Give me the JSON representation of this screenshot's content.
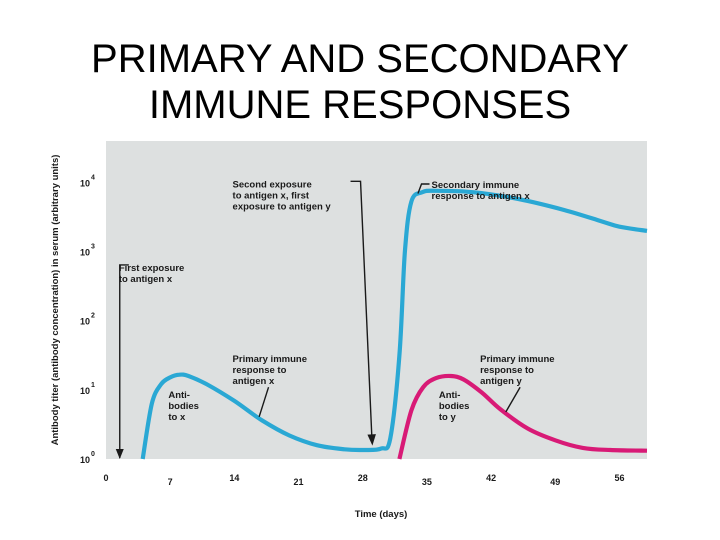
{
  "slide": {
    "title_line1": "PRIMARY AND SECONDARY",
    "title_line2": "IMMUNE RESPONSES"
  },
  "chart_data": {
    "type": "line",
    "title": "",
    "xlabel": "Time (days)",
    "ylabel": "Antibody titer (antibody concentration) in serum (arbitrary units)",
    "x_ticks": [
      0,
      7,
      14,
      21,
      28,
      35,
      42,
      49,
      56
    ],
    "y_ticks": [
      {
        "base": "10",
        "exp": "0",
        "value": 0
      },
      {
        "base": "10",
        "exp": "1",
        "value": 1
      },
      {
        "base": "10",
        "exp": "2",
        "value": 2
      },
      {
        "base": "10",
        "exp": "3",
        "value": 3
      },
      {
        "base": "10",
        "exp": "4",
        "value": 4
      }
    ],
    "xlim": [
      0,
      59
    ],
    "ylim": [
      0,
      4.6
    ],
    "y_scale": "log10",
    "grid": false,
    "background_color": "#dde0e0",
    "series": [
      {
        "color": "#2aa8d4",
        "points": [
          [
            4,
            0
          ],
          [
            5,
            0.8
          ],
          [
            6,
            1.08
          ],
          [
            7,
            1.18
          ],
          [
            8,
            1.22
          ],
          [
            9,
            1.2
          ],
          [
            11,
            1.08
          ],
          [
            14,
            0.84
          ],
          [
            17,
            0.56
          ],
          [
            20,
            0.34
          ],
          [
            23,
            0.2
          ],
          [
            26,
            0.14
          ],
          [
            28,
            0.13
          ],
          [
            30,
            0.15
          ],
          [
            31,
            0.3
          ],
          [
            32,
            1.5
          ],
          [
            32.6,
            3.0
          ],
          [
            33.3,
            3.72
          ],
          [
            34.5,
            3.86
          ],
          [
            36,
            3.88
          ],
          [
            40,
            3.86
          ],
          [
            45,
            3.76
          ],
          [
            50,
            3.6
          ],
          [
            54,
            3.44
          ],
          [
            56,
            3.36
          ],
          [
            59,
            3.3
          ]
        ]
      },
      {
        "color": "#d81a76",
        "points": [
          [
            32,
            0
          ],
          [
            33.3,
            0.7
          ],
          [
            34.6,
            1.04
          ],
          [
            36,
            1.17
          ],
          [
            37.6,
            1.2
          ],
          [
            39,
            1.15
          ],
          [
            41,
            0.96
          ],
          [
            43,
            0.72
          ],
          [
            46,
            0.44
          ],
          [
            49,
            0.27
          ],
          [
            52,
            0.16
          ],
          [
            55,
            0.13
          ],
          [
            59,
            0.12
          ]
        ]
      }
    ],
    "annotations": [
      {
        "lines": [
          "First exposure",
          "to antigen x"
        ],
        "x": 1.4,
        "y": 2.72,
        "target_x": 1.5,
        "target_y": 0
      },
      {
        "lines": [
          "Second exposure",
          "to antigen x, first",
          "exposure to antigen y"
        ],
        "x": 13.8,
        "y": 3.93,
        "target_x": 29,
        "target_y": 0.15
      },
      {
        "lines": [
          "Secondary immune",
          "response to antigen x"
        ],
        "x": 35.5,
        "y": 3.92,
        "target_x": 36.2,
        "target_y": 3.87
      },
      {
        "lines": [
          "Primary immune",
          "response to",
          "antigen x"
        ],
        "x": 13.8,
        "y": 1.4,
        "target_x": 16.7,
        "target_y": 0.61
      },
      {
        "lines": [
          "Primary immune",
          "response to",
          "antigen y"
        ],
        "x": 40.8,
        "y": 1.4,
        "target_x": 43.6,
        "target_y": 0.68
      }
    ],
    "curve_labels": [
      {
        "lines": [
          "Anti-",
          "bodies",
          "to x"
        ],
        "x": 6.8,
        "y": 0.88
      },
      {
        "lines": [
          "Anti-",
          "bodies",
          "to y"
        ],
        "x": 36.3,
        "y": 0.88
      }
    ]
  }
}
